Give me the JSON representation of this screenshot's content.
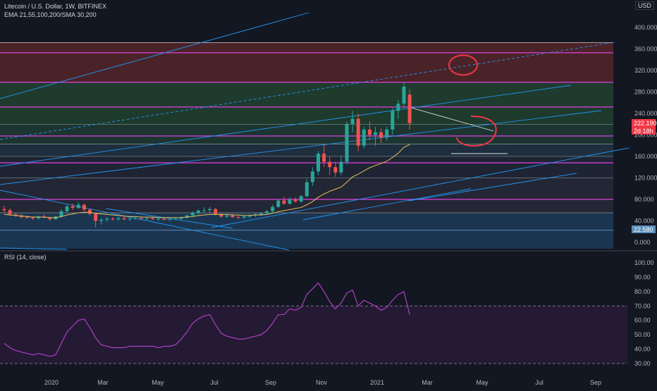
{
  "header": {
    "title": "Litecoin / U.S. Dollar, 1W, BITFINEX",
    "indicators": "EMA 21,55,100,200/SMA 30,200",
    "currency": "USD"
  },
  "rsi": {
    "label": "RSI (14, close)",
    "upper_band": 70,
    "lower_band": 30
  },
  "price_tags": [
    {
      "text": "222.190",
      "color": "#f23645"
    },
    {
      "text": "2d 18h",
      "color": "#f23645"
    },
    {
      "text": "22.580",
      "color": "#5b8fb9"
    }
  ],
  "colors": {
    "background": "#131722",
    "up": "#26a69a",
    "down": "#ef5350",
    "rsi_line": "#b03fc0",
    "channel": "#2196f3",
    "level": "#e040e0"
  },
  "chart_data": [
    {
      "type": "line",
      "title": "Litecoin / U.S. Dollar, 1W, BITFINEX",
      "x_tick_labels": [
        "2020",
        "Mar",
        "May",
        "Jul",
        "Sep",
        "Nov",
        "2021",
        "Mar",
        "May",
        "Jul",
        "Sep"
      ],
      "y_tick_labels": [
        "0.000",
        "40.000",
        "80.000",
        "120.000",
        "160.000",
        "200.000",
        "240.000",
        "280.000",
        "320.000",
        "360.000",
        "400.000"
      ],
      "ylim": [
        -10,
        440
      ],
      "candles": [
        [
          62,
          68,
          55,
          60
        ],
        [
          60,
          63,
          50,
          52
        ],
        [
          52,
          55,
          47,
          50
        ],
        [
          50,
          53,
          44,
          47
        ],
        [
          47,
          50,
          44,
          46
        ],
        [
          46,
          48,
          42,
          45
        ],
        [
          45,
          50,
          42,
          48
        ],
        [
          48,
          52,
          45,
          46
        ],
        [
          46,
          48,
          40,
          43
        ],
        [
          43,
          50,
          42,
          48
        ],
        [
          48,
          62,
          46,
          58
        ],
        [
          58,
          70,
          55,
          67
        ],
        [
          67,
          72,
          60,
          64
        ],
        [
          64,
          75,
          62,
          70
        ],
        [
          70,
          72,
          58,
          61
        ],
        [
          61,
          63,
          50,
          53
        ],
        [
          53,
          55,
          28,
          40
        ],
        [
          40,
          45,
          33,
          42
        ],
        [
          42,
          47,
          38,
          44
        ],
        [
          44,
          47,
          40,
          43
        ],
        [
          43,
          47,
          40,
          45
        ],
        [
          45,
          48,
          41,
          43
        ],
        [
          43,
          46,
          40,
          44
        ],
        [
          44,
          47,
          42,
          45
        ],
        [
          45,
          48,
          42,
          44
        ],
        [
          44,
          47,
          42,
          45
        ],
        [
          45,
          47,
          42,
          43
        ],
        [
          43,
          46,
          40,
          44
        ],
        [
          44,
          47,
          41,
          42
        ],
        [
          42,
          45,
          40,
          43
        ],
        [
          43,
          46,
          41,
          44
        ],
        [
          44,
          48,
          42,
          46
        ],
        [
          46,
          52,
          44,
          50
        ],
        [
          50,
          58,
          48,
          55
        ],
        [
          55,
          62,
          52,
          59
        ],
        [
          59,
          65,
          55,
          60
        ],
        [
          60,
          66,
          56,
          62
        ],
        [
          62,
          64,
          50,
          52
        ],
        [
          52,
          56,
          46,
          48
        ],
        [
          48,
          52,
          45,
          50
        ],
        [
          50,
          53,
          46,
          47
        ],
        [
          47,
          50,
          44,
          46
        ],
        [
          46,
          50,
          43,
          48
        ],
        [
          48,
          52,
          45,
          50
        ],
        [
          50,
          54,
          47,
          52
        ],
        [
          52,
          56,
          50,
          54
        ],
        [
          54,
          60,
          52,
          58
        ],
        [
          58,
          70,
          56,
          66
        ],
        [
          66,
          80,
          64,
          78
        ],
        [
          78,
          85,
          70,
          72
        ],
        [
          72,
          84,
          70,
          80
        ],
        [
          80,
          84,
          74,
          76
        ],
        [
          76,
          88,
          74,
          86
        ],
        [
          86,
          118,
          84,
          112
        ],
        [
          112,
          140,
          105,
          132
        ],
        [
          132,
          170,
          125,
          165
        ],
        [
          165,
          182,
          140,
          150
        ],
        [
          150,
          160,
          125,
          140
        ],
        [
          140,
          150,
          122,
          130
        ],
        [
          130,
          160,
          125,
          150
        ],
        [
          150,
          225,
          145,
          220
        ],
        [
          220,
          245,
          205,
          230
        ],
        [
          230,
          240,
          170,
          180
        ],
        [
          180,
          215,
          175,
          210
        ],
        [
          210,
          225,
          190,
          200
        ],
        [
          200,
          215,
          180,
          205
        ],
        [
          205,
          212,
          185,
          195
        ],
        [
          195,
          215,
          190,
          210
        ],
        [
          210,
          250,
          200,
          245
        ],
        [
          245,
          265,
          230,
          258
        ],
        [
          258,
          298,
          250,
          290
        ],
        [
          275,
          285,
          210,
          222
        ]
      ],
      "ema_short": [
        52,
        51,
        50,
        49,
        48,
        47,
        47,
        47,
        46,
        46,
        48,
        51,
        53,
        55,
        56,
        56,
        54,
        53,
        52,
        51,
        50,
        49,
        48,
        48,
        47,
        47,
        47,
        46,
        46,
        46,
        46,
        46,
        47,
        48,
        50,
        51,
        52,
        52,
        52,
        52,
        51,
        51,
        50,
        50,
        51,
        51,
        52,
        54,
        57,
        59,
        61,
        63,
        65,
        70,
        76,
        84,
        90,
        95,
        99,
        103,
        112,
        122,
        127,
        133,
        139,
        143,
        147,
        151,
        158,
        166,
        177,
        182
      ],
      "rsi_values": [
        44,
        41,
        39,
        38,
        37,
        36,
        37,
        36,
        35,
        36,
        44,
        52,
        56,
        60,
        61,
        55,
        48,
        43,
        42,
        41,
        41,
        41,
        42,
        42,
        42,
        42,
        42,
        41,
        42,
        42,
        43,
        47,
        52,
        58,
        61,
        63,
        64,
        57,
        51,
        49,
        48,
        47,
        47,
        48,
        49,
        50,
        53,
        58,
        64,
        64,
        68,
        67,
        69,
        78,
        82,
        86,
        80,
        73,
        68,
        72,
        79,
        81,
        70,
        74,
        72,
        70,
        67,
        69,
        74,
        78,
        80,
        64
      ],
      "rsi_ylim": [
        20,
        105
      ],
      "rsi_y_tick_labels": [
        "30.00",
        "40.00",
        "50.00",
        "60.00",
        "70.00",
        "80.00",
        "90.00",
        "100.00"
      ]
    }
  ]
}
